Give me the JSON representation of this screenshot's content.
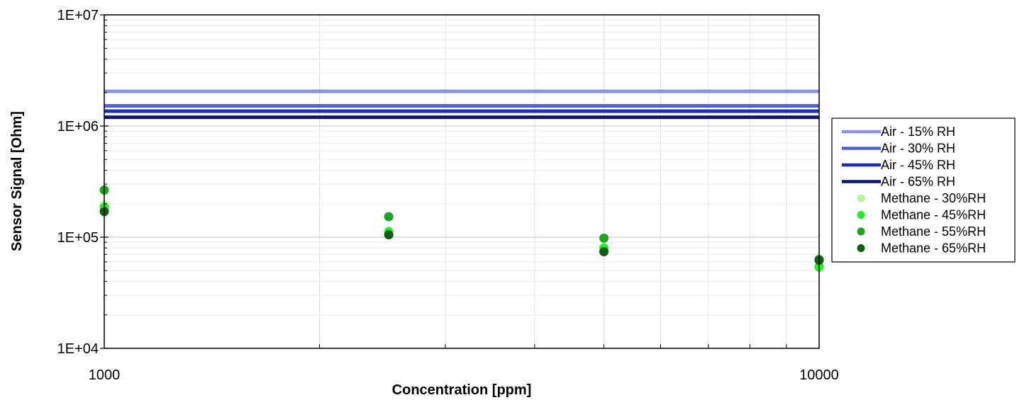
{
  "chart_data": {
    "type": "scatter",
    "xlabel": "Concentration [ppm]",
    "ylabel": "Sensor Signal [Ohm]",
    "x_scale": "log",
    "y_scale": "log",
    "xlim": [
      1000,
      10000
    ],
    "ylim": [
      10000,
      10000000
    ],
    "x_tick_labels": [
      {
        "value": 1000,
        "label": "1000"
      },
      {
        "value": 10000,
        "label": "10000"
      }
    ],
    "y_tick_labels": [
      {
        "value": 10000,
        "label": "1E+04"
      },
      {
        "value": 100000,
        "label": "1E+05"
      },
      {
        "value": 1000000,
        "label": "1E+06"
      },
      {
        "value": 10000000,
        "label": "1E+07"
      }
    ],
    "grid": true,
    "legend_position": "right",
    "series": [
      {
        "name": "Air - 15% RH",
        "kind": "line",
        "color": "#8f8fe8",
        "x": [
          1000,
          10000
        ],
        "y": [
          2050000,
          2050000
        ]
      },
      {
        "name": "Air - 30% RH",
        "kind": "line",
        "color": "#5161d9",
        "x": [
          1000,
          10000
        ],
        "y": [
          1520000,
          1520000
        ]
      },
      {
        "name": "Air - 45% RH",
        "kind": "line",
        "color": "#1a2bc4",
        "x": [
          1000,
          10000
        ],
        "y": [
          1360000,
          1360000
        ]
      },
      {
        "name": "Air - 65% RH",
        "kind": "line",
        "color": "#0c1677",
        "x": [
          1000,
          10000
        ],
        "y": [
          1200000,
          1200000
        ]
      },
      {
        "name": "Methane - 30%RH",
        "kind": "scatter",
        "color": "#b4f5a0",
        "x": [
          1000,
          2500,
          5000,
          10000
        ],
        "y": [
          195000,
          113000,
          78000,
          55000
        ]
      },
      {
        "name": "Methane - 45%RH",
        "kind": "scatter",
        "color": "#22ee22",
        "x": [
          1000,
          2500,
          5000,
          10000
        ],
        "y": [
          185000,
          112000,
          80000,
          54000
        ]
      },
      {
        "name": "Methane - 55%RH",
        "kind": "scatter",
        "color": "#1fa51f",
        "x": [
          1000,
          2500,
          5000,
          10000
        ],
        "y": [
          265000,
          153000,
          98000,
          63000
        ]
      },
      {
        "name": "Methane - 65%RH",
        "kind": "scatter",
        "color": "#125e12",
        "x": [
          1000,
          2500,
          5000,
          10000
        ],
        "y": [
          170000,
          105000,
          74000,
          62000
        ]
      }
    ]
  }
}
